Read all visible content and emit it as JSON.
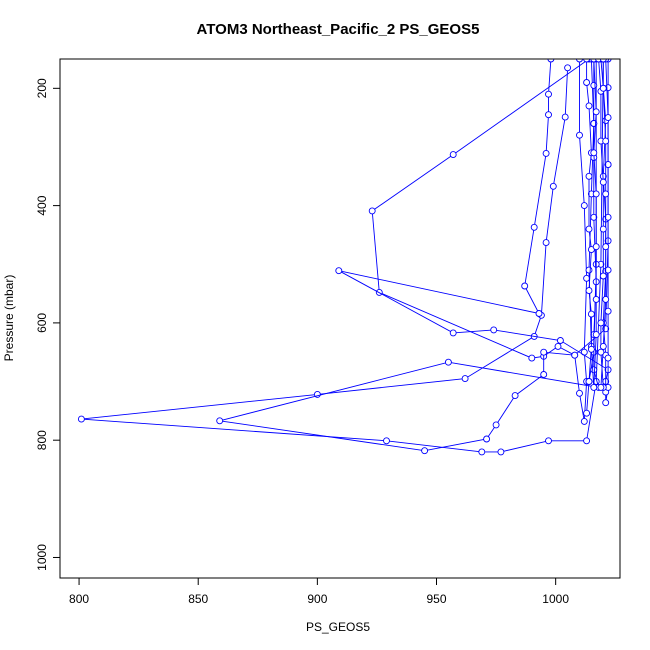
{
  "chart_data": {
    "type": "line",
    "title": "ATOM3 Northeast_Pacific_2 PS_GEOS5",
    "xlabel": "PS_GEOS5",
    "ylabel": "Pressure (mbar)",
    "xlim": [
      792,
      1027
    ],
    "ylim": [
      1035,
      150
    ],
    "y_reversed": true,
    "x_ticks": [
      800,
      850,
      900,
      950,
      1000
    ],
    "y_ticks": [
      200,
      400,
      600,
      800,
      1000
    ],
    "grid": false,
    "legend": "none",
    "series_color": "#0000ff",
    "marker": "open-circle",
    "series": [
      {
        "values": [
          [
            1005,
            165
          ],
          [
            1004,
            249
          ],
          [
            999,
            367
          ],
          [
            996,
            463
          ],
          [
            994,
            587
          ],
          [
            991,
            623
          ],
          [
            962,
            695
          ],
          [
            900,
            722
          ],
          [
            801,
            764
          ],
          [
            929,
            801
          ],
          [
            969,
            820
          ],
          [
            977,
            820
          ],
          [
            997,
            801
          ],
          [
            1013,
            801
          ],
          [
            1017,
            700
          ],
          [
            1019,
            500
          ],
          [
            1020,
            150
          ]
        ]
      },
      {
        "values": [
          [
            1010,
            150
          ],
          [
            1010,
            280
          ],
          [
            1012,
            400
          ],
          [
            1013,
            524
          ],
          [
            1012,
            650
          ],
          [
            1013,
            700
          ],
          [
            1012,
            768
          ],
          [
            1010,
            720
          ],
          [
            1008,
            655
          ],
          [
            1001,
            640
          ],
          [
            995,
            657
          ],
          [
            990,
            660
          ],
          [
            926,
            548
          ],
          [
            923,
            409
          ],
          [
            957,
            313
          ],
          [
            1014,
            150
          ]
        ]
      },
      {
        "values": [
          [
            1015,
            150
          ],
          [
            1016,
            260
          ],
          [
            1015,
            380
          ],
          [
            1014,
            510
          ],
          [
            1015,
            640
          ],
          [
            1014,
            700
          ],
          [
            1013,
            754
          ],
          [
            1014,
            700
          ],
          [
            1016,
            650
          ],
          [
            1017,
            500
          ],
          [
            1017,
            150
          ]
        ]
      },
      {
        "values": [
          [
            998,
            150
          ],
          [
            997,
            210
          ],
          [
            997,
            245
          ],
          [
            996,
            311
          ],
          [
            991,
            437
          ],
          [
            987,
            537
          ],
          [
            993,
            584
          ],
          [
            909,
            511
          ],
          [
            957,
            617
          ],
          [
            974,
            612
          ],
          [
            1002,
            630
          ],
          [
            1022,
            680
          ],
          [
            1021,
            700
          ]
        ]
      },
      {
        "values": [
          [
            1016,
            150
          ],
          [
            1016,
            195
          ],
          [
            1016,
            260
          ],
          [
            1016,
            318
          ],
          [
            1016,
            420
          ],
          [
            1017,
            530
          ],
          [
            1016,
            620
          ],
          [
            1016,
            680
          ],
          [
            1018,
            710
          ],
          [
            955,
            667
          ],
          [
            859,
            767
          ],
          [
            945,
            818
          ],
          [
            971,
            798
          ],
          [
            975,
            774
          ],
          [
            983,
            724
          ],
          [
            995,
            688
          ],
          [
            995,
            650
          ],
          [
            1008,
            655
          ],
          [
            1021,
            610
          ],
          [
            1022,
            460
          ],
          [
            1022,
            330
          ],
          [
            1022,
            199
          ],
          [
            1022,
            150
          ]
        ]
      },
      {
        "values": [
          [
            1019,
            150
          ],
          [
            1020,
            200
          ],
          [
            1021,
            255
          ],
          [
            1020,
            350
          ],
          [
            1021,
            423
          ],
          [
            1021,
            512
          ],
          [
            1020,
            600
          ],
          [
            1021,
            655
          ],
          [
            1021,
            718
          ],
          [
            1021,
            736
          ],
          [
            1022,
            710
          ],
          [
            1022,
            660
          ],
          [
            1022,
            580
          ],
          [
            1022,
            510
          ],
          [
            1022,
            420
          ],
          [
            1022,
            330
          ],
          [
            1022,
            250
          ],
          [
            1021,
            150
          ]
        ]
      },
      {
        "values": [
          [
            1013,
            150
          ],
          [
            1013,
            190
          ],
          [
            1014,
            230
          ],
          [
            1015,
            310
          ],
          [
            1014,
            350
          ],
          [
            1014,
            440
          ],
          [
            1015,
            475
          ],
          [
            1014,
            545
          ],
          [
            1015,
            585
          ],
          [
            1015,
            645
          ],
          [
            1016,
            710
          ],
          [
            1017,
            620
          ],
          [
            1017,
            560
          ],
          [
            1017,
            470
          ],
          [
            1017,
            380
          ],
          [
            1016,
            310
          ],
          [
            1017,
            240
          ],
          [
            1016,
            150
          ]
        ]
      },
      {
        "values": [
          [
            1018,
            150
          ],
          [
            1019,
            205
          ],
          [
            1019,
            290
          ],
          [
            1020,
            360
          ],
          [
            1020,
            440
          ],
          [
            1020,
            520
          ],
          [
            1019,
            600
          ],
          [
            1019,
            650
          ],
          [
            1020,
            710
          ],
          [
            1019,
            710
          ],
          [
            1020,
            640
          ],
          [
            1021,
            560
          ],
          [
            1021,
            470
          ],
          [
            1021,
            380
          ],
          [
            1021,
            290
          ],
          [
            1020,
            200
          ],
          [
            1020,
            150
          ]
        ]
      }
    ]
  }
}
